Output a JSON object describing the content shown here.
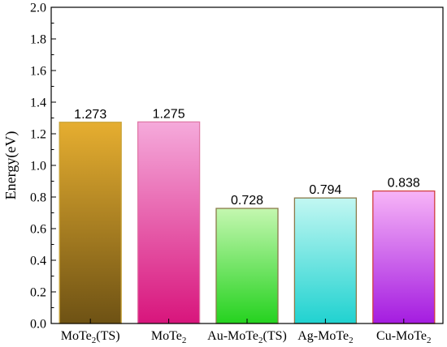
{
  "chart_data": {
    "type": "bar",
    "categories": [
      {
        "base": "MoTe",
        "sub": "2",
        "tail": "(TS)"
      },
      {
        "base": "MoTe",
        "sub": "2",
        "tail": ""
      },
      {
        "base": "Au-MoTe",
        "sub": "2",
        "tail": "(TS)"
      },
      {
        "base": "Ag-MoTe",
        "sub": "2",
        "tail": ""
      },
      {
        "base": "Cu-MoTe",
        "sub": "2",
        "tail": ""
      }
    ],
    "values": [
      1.273,
      1.275,
      0.728,
      0.794,
      0.838
    ],
    "value_labels": [
      "1.273",
      "1.275",
      "0.728",
      "0.794",
      "0.838"
    ],
    "ylabel": "Energy(eV)",
    "ylim": [
      0,
      2.0
    ],
    "yticks": [
      "0.0",
      "0.2",
      "0.4",
      "0.6",
      "0.8",
      "1.0",
      "1.2",
      "1.4",
      "1.6",
      "1.8",
      "2.0"
    ],
    "grid": false,
    "colors": [
      {
        "top": "#e6ae30",
        "bottom": "#6e5214",
        "border": "#c9a43a"
      },
      {
        "top": "#f5aadb",
        "bottom": "#d8157c",
        "border": "#e07aa8"
      },
      {
        "top": "#c4f7b0",
        "bottom": "#25d21f",
        "border": "#8a7a4a"
      },
      {
        "top": "#c2f7f2",
        "bottom": "#20d2d0",
        "border": "#8a7a4a"
      },
      {
        "top": "#f7b4f7",
        "bottom": "#a41ce0",
        "border": "#d04040"
      }
    ]
  }
}
